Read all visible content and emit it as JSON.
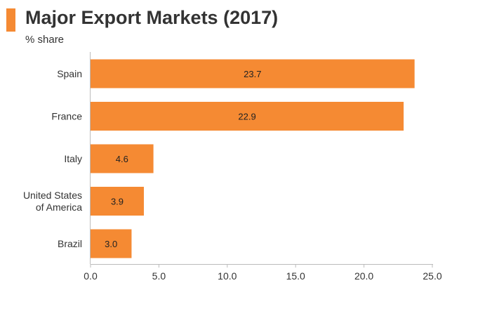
{
  "header": {
    "title": "Major Export Markets (2017)",
    "subtitle": "% share"
  },
  "chart_data": {
    "type": "bar",
    "orientation": "horizontal",
    "title": "Major Export Markets (2017)",
    "subtitle": "% share",
    "categories": [
      "Spain",
      "France",
      "Italy",
      "United States of America",
      "Brazil"
    ],
    "category_lines": [
      [
        "Spain"
      ],
      [
        "France"
      ],
      [
        "Italy"
      ],
      [
        "United States",
        "of America"
      ],
      [
        "Brazil"
      ]
    ],
    "values": [
      23.7,
      22.9,
      4.6,
      3.9,
      3.0
    ],
    "value_labels": [
      "23.7",
      "22.9",
      "4.6",
      "3.9",
      "3.0"
    ],
    "xlim": [
      0,
      25
    ],
    "xticks": [
      0,
      5,
      10,
      15,
      20,
      25
    ],
    "xtick_labels": [
      "0.0",
      "5.0",
      "10.0",
      "15.0",
      "20.0",
      "25.0"
    ],
    "xlabel": "",
    "ylabel": "",
    "grid": false,
    "legend": "none",
    "colors": {
      "bar": "#f58a33",
      "accent": "#f58a33",
      "axis": "#bbbbbb",
      "text": "#333333"
    }
  }
}
